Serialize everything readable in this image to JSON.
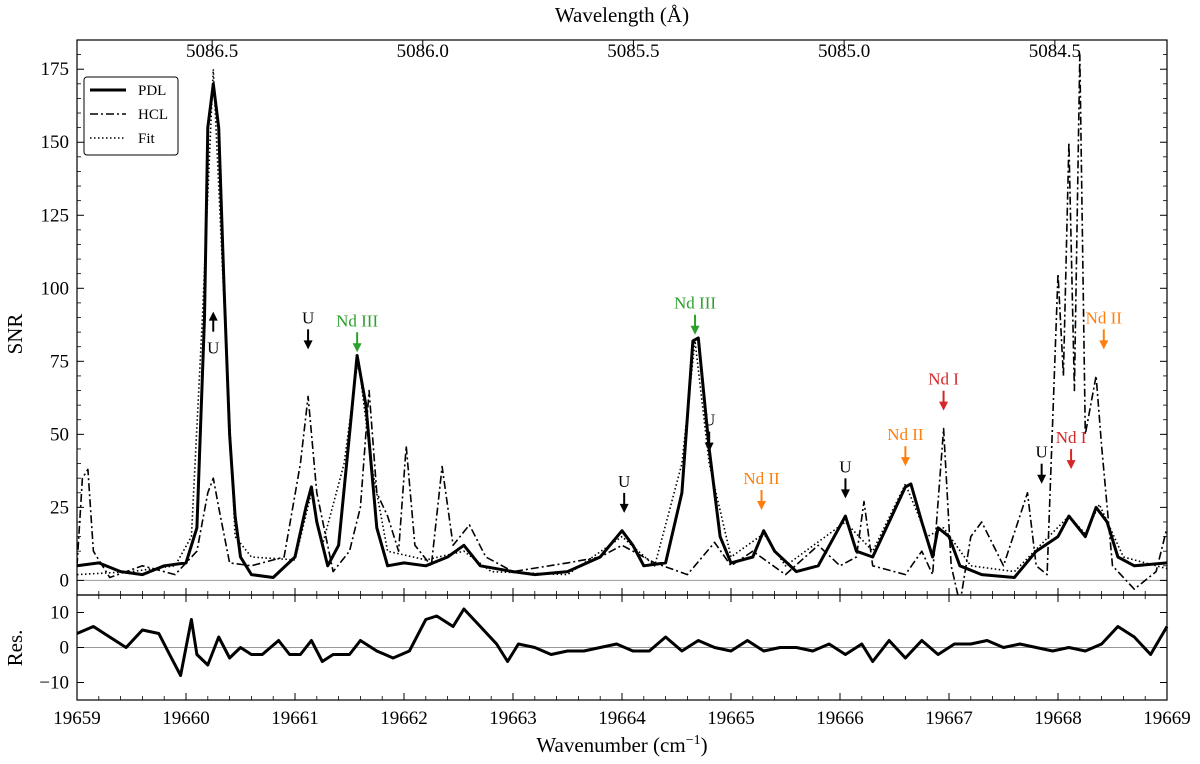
{
  "chart_data": {
    "type": "line",
    "x_axis": {
      "label": "Wavenumber (cm",
      "label_sup": "−1",
      "label_end": ")",
      "range": [
        19659,
        19669
      ],
      "ticks": [
        19659,
        19660,
        19661,
        19662,
        19663,
        19664,
        19665,
        19666,
        19667,
        19668,
        19669
      ],
      "tick_labels": [
        "19659",
        "19660",
        "19661",
        "19662",
        "19663",
        "19664",
        "19665",
        "19666",
        "19667",
        "19668",
        "19669"
      ]
    },
    "top_axis": {
      "label": "Wavelength (Å)",
      "ticks": [
        {
          "wavelength": 5086.5,
          "label": "5086.5"
        },
        {
          "wavelength": 5086.0,
          "label": "5086.0"
        },
        {
          "wavelength": 5085.5,
          "label": "5085.5"
        },
        {
          "wavelength": 5085.0,
          "label": "5085.0"
        },
        {
          "wavelength": 5084.5,
          "label": "5084.5"
        }
      ]
    },
    "y_axis": {
      "label": "SNR",
      "range": [
        -5,
        185
      ],
      "ticks": [
        0,
        25,
        50,
        75,
        100,
        125,
        150,
        175
      ],
      "tick_labels": [
        "0",
        "25",
        "50",
        "75",
        "100",
        "125",
        "150",
        "175"
      ]
    },
    "residual_axis": {
      "label": "Res.",
      "range": [
        -15,
        15
      ],
      "ticks": [
        -10,
        0,
        10
      ],
      "tick_labels": [
        "−10",
        "0",
        "10"
      ]
    },
    "legend": {
      "placement": "top-left",
      "entries": [
        {
          "name": "PDL",
          "style": "solid"
        },
        {
          "name": "HCL",
          "style": "dashdot"
        },
        {
          "name": "Fit",
          "style": "dotted"
        }
      ]
    },
    "series": [
      {
        "name": "PDL",
        "style": "solid",
        "points": [
          [
            19659,
            5
          ],
          [
            19659.2,
            6
          ],
          [
            19659.4,
            3
          ],
          [
            19659.6,
            2
          ],
          [
            19659.8,
            5
          ],
          [
            19660,
            6
          ],
          [
            19660.1,
            18
          ],
          [
            19660.17,
            90
          ],
          [
            19660.2,
            155
          ],
          [
            19660.25,
            170
          ],
          [
            19660.3,
            155
          ],
          [
            19660.35,
            100
          ],
          [
            19660.4,
            50
          ],
          [
            19660.45,
            22
          ],
          [
            19660.5,
            8
          ],
          [
            19660.6,
            2
          ],
          [
            19660.8,
            1
          ],
          [
            19661,
            8
          ],
          [
            19661.1,
            25
          ],
          [
            19661.15,
            32
          ],
          [
            19661.2,
            20
          ],
          [
            19661.3,
            5
          ],
          [
            19661.4,
            12
          ],
          [
            19661.5,
            50
          ],
          [
            19661.57,
            77
          ],
          [
            19661.65,
            60
          ],
          [
            19661.75,
            18
          ],
          [
            19661.85,
            5
          ],
          [
            19662,
            6
          ],
          [
            19662.2,
            5
          ],
          [
            19662.4,
            8
          ],
          [
            19662.55,
            12
          ],
          [
            19662.7,
            5
          ],
          [
            19663,
            3
          ],
          [
            19663.2,
            2
          ],
          [
            19663.5,
            3
          ],
          [
            19663.8,
            8
          ],
          [
            19664,
            17
          ],
          [
            19664.1,
            12
          ],
          [
            19664.2,
            5
          ],
          [
            19664.4,
            6
          ],
          [
            19664.55,
            30
          ],
          [
            19664.65,
            82
          ],
          [
            19664.7,
            83
          ],
          [
            19664.8,
            45
          ],
          [
            19664.9,
            15
          ],
          [
            19665,
            6
          ],
          [
            19665.2,
            8
          ],
          [
            19665.3,
            17
          ],
          [
            19665.4,
            10
          ],
          [
            19665.6,
            3
          ],
          [
            19665.8,
            5
          ],
          [
            19666.05,
            22
          ],
          [
            19666.15,
            10
          ],
          [
            19666.3,
            8
          ],
          [
            19666.45,
            20
          ],
          [
            19666.6,
            32
          ],
          [
            19666.65,
            33
          ],
          [
            19666.75,
            20
          ],
          [
            19666.85,
            8
          ],
          [
            19666.9,
            18
          ],
          [
            19667,
            15
          ],
          [
            19667.1,
            5
          ],
          [
            19667.3,
            2
          ],
          [
            19667.6,
            1
          ],
          [
            19667.8,
            10
          ],
          [
            19668,
            15
          ],
          [
            19668.1,
            22
          ],
          [
            19668.25,
            15
          ],
          [
            19668.35,
            25
          ],
          [
            19668.45,
            20
          ],
          [
            19668.55,
            8
          ],
          [
            19668.7,
            5
          ],
          [
            19669,
            6
          ]
        ]
      },
      {
        "name": "HCL",
        "style": "dashdot",
        "points": [
          [
            19659,
            5
          ],
          [
            19659.05,
            35
          ],
          [
            19659.1,
            38
          ],
          [
            19659.15,
            10
          ],
          [
            19659.3,
            1
          ],
          [
            19659.6,
            5
          ],
          [
            19659.9,
            2
          ],
          [
            19660.1,
            10
          ],
          [
            19660.2,
            30
          ],
          [
            19660.25,
            35
          ],
          [
            19660.3,
            25
          ],
          [
            19660.4,
            6
          ],
          [
            19660.6,
            5
          ],
          [
            19660.9,
            8
          ],
          [
            19661.05,
            40
          ],
          [
            19661.12,
            63
          ],
          [
            19661.2,
            30
          ],
          [
            19661.35,
            3
          ],
          [
            19661.5,
            10
          ],
          [
            19661.6,
            25
          ],
          [
            19661.68,
            65
          ],
          [
            19661.75,
            30
          ],
          [
            19661.85,
            22
          ],
          [
            19661.95,
            10
          ],
          [
            19662.02,
            46
          ],
          [
            19662.1,
            12
          ],
          [
            19662.25,
            5
          ],
          [
            19662.35,
            39
          ],
          [
            19662.45,
            12
          ],
          [
            19662.6,
            19
          ],
          [
            19662.75,
            8
          ],
          [
            19663,
            3
          ],
          [
            19663.5,
            6
          ],
          [
            19663.8,
            8
          ],
          [
            19664,
            12
          ],
          [
            19664.3,
            6
          ],
          [
            19664.6,
            2
          ],
          [
            19664.85,
            13
          ],
          [
            19665,
            5
          ],
          [
            19665.2,
            10
          ],
          [
            19665.5,
            2
          ],
          [
            19665.8,
            12
          ],
          [
            19666,
            5
          ],
          [
            19666.15,
            8
          ],
          [
            19666.22,
            27
          ],
          [
            19666.3,
            5
          ],
          [
            19666.6,
            2
          ],
          [
            19666.75,
            10
          ],
          [
            19666.85,
            2
          ],
          [
            19666.95,
            52
          ],
          [
            19667.02,
            5
          ],
          [
            19667.1,
            -8
          ],
          [
            19667.2,
            15
          ],
          [
            19667.3,
            20
          ],
          [
            19667.5,
            5
          ],
          [
            19667.72,
            30
          ],
          [
            19667.8,
            5
          ],
          [
            19667.9,
            2
          ],
          [
            19668,
            105
          ],
          [
            19668.05,
            70
          ],
          [
            19668.1,
            150
          ],
          [
            19668.15,
            65
          ],
          [
            19668.2,
            180
          ],
          [
            19668.25,
            50
          ],
          [
            19668.35,
            70
          ],
          [
            19668.4,
            46
          ],
          [
            19668.5,
            5
          ],
          [
            19668.7,
            -3
          ],
          [
            19668.9,
            3
          ],
          [
            19669,
            18
          ]
        ]
      },
      {
        "name": "Fit",
        "style": "dotted",
        "points": [
          [
            19659,
            2
          ],
          [
            19659.5,
            3
          ],
          [
            19659.9,
            5
          ],
          [
            19660.05,
            15
          ],
          [
            19660.15,
            90
          ],
          [
            19660.25,
            175
          ],
          [
            19660.35,
            95
          ],
          [
            19660.45,
            15
          ],
          [
            19660.6,
            8
          ],
          [
            19661,
            7
          ],
          [
            19661.15,
            30
          ],
          [
            19661.25,
            12
          ],
          [
            19661.45,
            40
          ],
          [
            19661.58,
            76
          ],
          [
            19661.7,
            40
          ],
          [
            19661.85,
            10
          ],
          [
            19662.2,
            7
          ],
          [
            19662.55,
            10
          ],
          [
            19662.8,
            3
          ],
          [
            19663.5,
            2
          ],
          [
            19664,
            15
          ],
          [
            19664.3,
            5
          ],
          [
            19664.55,
            40
          ],
          [
            19664.67,
            82
          ],
          [
            19664.8,
            40
          ],
          [
            19665,
            8
          ],
          [
            19665.3,
            16
          ],
          [
            19665.5,
            5
          ],
          [
            19666.05,
            20
          ],
          [
            19666.3,
            10
          ],
          [
            19666.6,
            33
          ],
          [
            19666.8,
            15
          ],
          [
            19666.95,
            18
          ],
          [
            19667.2,
            5
          ],
          [
            19667.6,
            3
          ],
          [
            19668.1,
            22
          ],
          [
            19668.25,
            16
          ],
          [
            19668.38,
            26
          ],
          [
            19668.6,
            8
          ],
          [
            19669,
            4
          ]
        ]
      },
      {
        "name": "Residual",
        "style": "solid",
        "points": [
          [
            19659,
            4
          ],
          [
            19659.15,
            6
          ],
          [
            19659.3,
            3
          ],
          [
            19659.45,
            0
          ],
          [
            19659.6,
            5
          ],
          [
            19659.75,
            4
          ],
          [
            19659.85,
            -2
          ],
          [
            19659.95,
            -8
          ],
          [
            19660.05,
            8
          ],
          [
            19660.1,
            -2
          ],
          [
            19660.2,
            -5
          ],
          [
            19660.3,
            3
          ],
          [
            19660.4,
            -3
          ],
          [
            19660.5,
            0
          ],
          [
            19660.6,
            -2
          ],
          [
            19660.7,
            -2
          ],
          [
            19660.85,
            2
          ],
          [
            19660.95,
            -2
          ],
          [
            19661.05,
            -2
          ],
          [
            19661.15,
            2
          ],
          [
            19661.25,
            -4
          ],
          [
            19661.35,
            -2
          ],
          [
            19661.5,
            -2
          ],
          [
            19661.6,
            2
          ],
          [
            19661.75,
            -1
          ],
          [
            19661.9,
            -3
          ],
          [
            19662.05,
            -1
          ],
          [
            19662.2,
            8
          ],
          [
            19662.3,
            9
          ],
          [
            19662.45,
            6
          ],
          [
            19662.55,
            11
          ],
          [
            19662.7,
            6
          ],
          [
            19662.85,
            1
          ],
          [
            19662.95,
            -4
          ],
          [
            19663.05,
            1
          ],
          [
            19663.2,
            0
          ],
          [
            19663.35,
            -2
          ],
          [
            19663.5,
            -1
          ],
          [
            19663.65,
            -1
          ],
          [
            19663.8,
            0
          ],
          [
            19663.95,
            1
          ],
          [
            19664.1,
            -1
          ],
          [
            19664.25,
            -1
          ],
          [
            19664.4,
            3
          ],
          [
            19664.55,
            -1
          ],
          [
            19664.7,
            2
          ],
          [
            19664.85,
            0
          ],
          [
            19665,
            -1
          ],
          [
            19665.15,
            2
          ],
          [
            19665.3,
            -1
          ],
          [
            19665.45,
            0
          ],
          [
            19665.6,
            0
          ],
          [
            19665.75,
            -1
          ],
          [
            19665.9,
            1
          ],
          [
            19666.05,
            -2
          ],
          [
            19666.2,
            1
          ],
          [
            19666.3,
            -4
          ],
          [
            19666.45,
            2
          ],
          [
            19666.6,
            -3
          ],
          [
            19666.75,
            2
          ],
          [
            19666.9,
            -2
          ],
          [
            19667.05,
            1
          ],
          [
            19667.2,
            1
          ],
          [
            19667.35,
            2
          ],
          [
            19667.5,
            0
          ],
          [
            19667.65,
            1
          ],
          [
            19667.8,
            0
          ],
          [
            19667.95,
            -1
          ],
          [
            19668.1,
            0
          ],
          [
            19668.25,
            -1
          ],
          [
            19668.4,
            1
          ],
          [
            19668.55,
            6
          ],
          [
            19668.7,
            3
          ],
          [
            19668.85,
            -2
          ],
          [
            19669,
            6
          ]
        ]
      }
    ],
    "annotations": [
      {
        "text": "U",
        "color": "#000000",
        "x": 19660.25,
        "y": 92,
        "direction": "up"
      },
      {
        "text": "U",
        "color": "#000000",
        "x": 19661.12,
        "y": 88,
        "direction": "down"
      },
      {
        "text": "Nd III",
        "color": "#2ca02c",
        "x": 19661.57,
        "y": 87,
        "direction": "down"
      },
      {
        "text": "Nd III",
        "color": "#2ca02c",
        "x": 19664.67,
        "y": 93,
        "direction": "down"
      },
      {
        "text": "U",
        "color": "#000000",
        "x": 19664.8,
        "y": 53,
        "direction": "down"
      },
      {
        "text": "U",
        "color": "#000000",
        "x": 19664.02,
        "y": 32,
        "direction": "down"
      },
      {
        "text": "Nd II",
        "color": "#ff7f0e",
        "x": 19665.28,
        "y": 33,
        "direction": "down"
      },
      {
        "text": "U",
        "color": "#000000",
        "x": 19666.05,
        "y": 37,
        "direction": "down"
      },
      {
        "text": "Nd II",
        "color": "#ff7f0e",
        "x": 19666.6,
        "y": 48,
        "direction": "down"
      },
      {
        "text": "Nd I",
        "color": "#d62728",
        "x": 19666.95,
        "y": 67,
        "direction": "down"
      },
      {
        "text": "U",
        "color": "#000000",
        "x": 19667.85,
        "y": 42,
        "direction": "down"
      },
      {
        "text": "Nd I",
        "color": "#d62728",
        "x": 19668.12,
        "y": 47,
        "direction": "down"
      },
      {
        "text": "Nd II",
        "color": "#ff7f0e",
        "x": 19668.42,
        "y": 88,
        "direction": "down"
      }
    ]
  }
}
